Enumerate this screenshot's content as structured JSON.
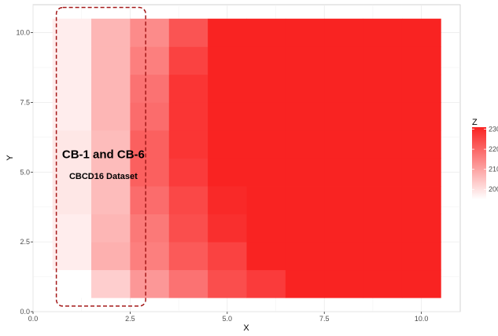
{
  "chart_data": {
    "type": "heatmap",
    "xlabel": "X",
    "ylabel": "Y",
    "xlim": [
      0,
      11
    ],
    "ylim": [
      0,
      11
    ],
    "x_ticks": [
      0,
      2.5,
      5,
      7.5,
      10
    ],
    "x_tick_labels": [
      "0.0",
      "2.5",
      "5.0",
      "7.5",
      "10.0"
    ],
    "y_ticks": [
      0,
      2.5,
      5,
      7.5,
      10
    ],
    "y_tick_labels": [
      "0.0",
      "2.5",
      "5.0",
      "7.5",
      "10.0"
    ],
    "x": [
      1,
      2,
      3,
      4,
      5,
      6,
      7,
      8,
      9,
      10
    ],
    "y": [
      1,
      2,
      3,
      4,
      5,
      6,
      7,
      8,
      9,
      10
    ],
    "z": [
      [
        195,
        203,
        212,
        218,
        224,
        227,
        231,
        231,
        231,
        231
      ],
      [
        198,
        208,
        216,
        222,
        226,
        231,
        231,
        231,
        231,
        231
      ],
      [
        198,
        207,
        217,
        224,
        229,
        231,
        231,
        231,
        231,
        231
      ],
      [
        199,
        206,
        219,
        225,
        230,
        231,
        231,
        231,
        231,
        231
      ],
      [
        199,
        206,
        221,
        227,
        231,
        231,
        231,
        231,
        231,
        231
      ],
      [
        199,
        206,
        221,
        228,
        231,
        231,
        231,
        231,
        231,
        231
      ],
      [
        198,
        207,
        219,
        228,
        231,
        231,
        231,
        231,
        231,
        231
      ],
      [
        198,
        207,
        218,
        228,
        231,
        231,
        231,
        231,
        231,
        231
      ],
      [
        198,
        207,
        216,
        226,
        231,
        231,
        231,
        231,
        231,
        231
      ],
      [
        198,
        207,
        214,
        223,
        231,
        231,
        231,
        231,
        231,
        231
      ]
    ],
    "legend": {
      "title": "Z",
      "position": "right",
      "range": [
        195,
        231
      ],
      "breaks": [
        200,
        210,
        220,
        230
      ],
      "break_labels": [
        "200",
        "210",
        "220",
        "230"
      ],
      "low_color": "#ffffff",
      "high_color": "#f92322"
    },
    "annotations": [
      {
        "title": "CB-1 and CB-6",
        "subtitle": "CBCD16 Dataset",
        "x_range": [
          0.6,
          2.9
        ],
        "y_range": [
          0.2,
          10.9
        ]
      }
    ],
    "annotation_box_color": "#a31919",
    "panel_grid": true
  }
}
